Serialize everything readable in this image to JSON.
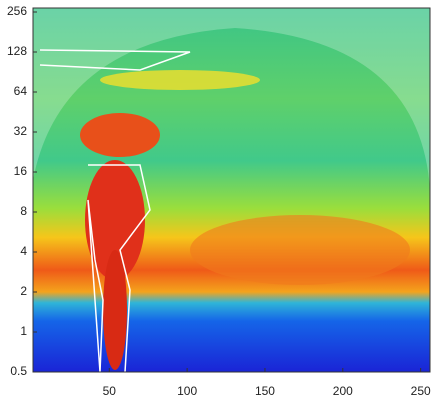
{
  "chart_data": {
    "type": "wavelet",
    "xlim": [
      1,
      256
    ],
    "xticks": [
      50,
      100,
      150,
      200,
      250
    ],
    "ylim": [
      0.5,
      256
    ],
    "yticks": [
      0.5,
      1,
      2,
      4,
      8,
      16,
      32,
      64,
      128,
      256
    ],
    "ylog": true
  }
}
